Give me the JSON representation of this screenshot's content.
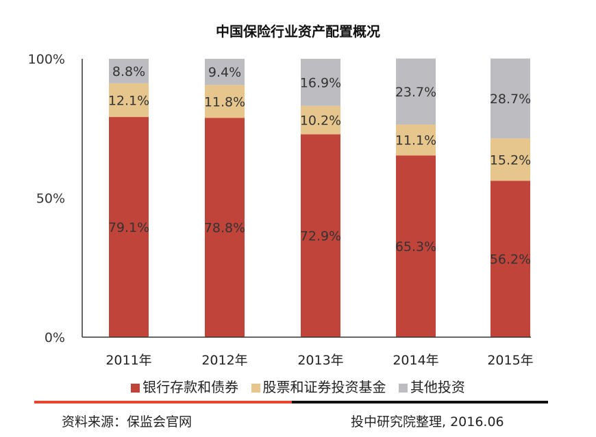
{
  "chart_data": {
    "type": "bar",
    "stacked": true,
    "title": "中国保险行业资产配置概况",
    "categories": [
      "2011年",
      "2012年",
      "2013年",
      "2014年",
      "2015年"
    ],
    "series": [
      {
        "name": "银行存款和债券",
        "color": "#c0443a",
        "values": [
          79.1,
          78.8,
          72.9,
          65.3,
          56.2
        ],
        "labels": [
          "79.1%",
          "78.8%",
          "72.9%",
          "65.3%",
          "56.2%"
        ]
      },
      {
        "name": "股票和证券投资基金",
        "color": "#e6c68c",
        "values": [
          12.1,
          11.8,
          10.2,
          11.1,
          15.2
        ],
        "labels": [
          "12.1%",
          "11.8%",
          "10.2%",
          "11.1%",
          "15.2%"
        ]
      },
      {
        "name": "其他投资",
        "color": "#bdbdc1",
        "values": [
          8.8,
          9.4,
          16.9,
          23.7,
          28.7
        ],
        "labels": [
          "8.8%",
          "9.4%",
          "16.9%",
          "23.7%",
          "28.7%"
        ]
      }
    ],
    "ylim": [
      0,
      100
    ],
    "yticks": [
      0,
      50,
      100
    ],
    "ytick_labels": [
      "0%",
      "50%",
      "100%"
    ],
    "legend": "bottom",
    "grid": false
  },
  "footer": {
    "source": "资料来源：保监会官网",
    "credit": "投中研究院整理, 2016.06"
  }
}
